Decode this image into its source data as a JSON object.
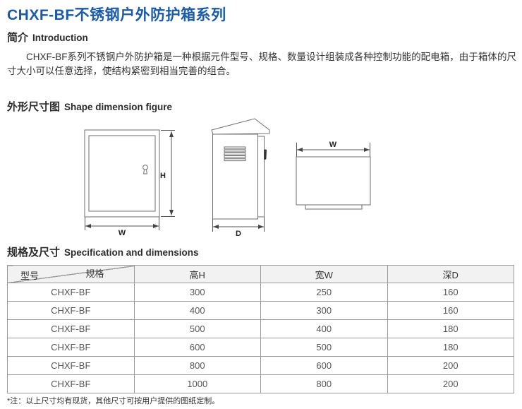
{
  "page": {
    "title": "CHXF-BF不锈钢户外防护箱系列",
    "title_color": "#1a5aa6"
  },
  "intro": {
    "heading_zh": "简介",
    "heading_en": "Introduction",
    "paragraph": "CHXF-BF系列不锈钢户外防护箱是一种根据元件型号、规格、数量设计组装成各种控制功能的配电箱，由于箱体的尺寸大小可以任意选择，使结构紧密到相当完善的组合。"
  },
  "shape_figure": {
    "heading_zh": "外形尺寸图",
    "heading_en": "Shape dimension figure",
    "front_view": {
      "height_label": "H",
      "width_label": "W"
    },
    "side_view": {
      "depth_label": "D"
    },
    "back_view": {
      "width_label": "W"
    }
  },
  "spec_table": {
    "heading_zh": "规格及尺寸",
    "heading_en": "Specification and dimensions",
    "corner": {
      "top": "规格",
      "bottom": "型号"
    },
    "columns": [
      "高H",
      "宽W",
      "深D"
    ],
    "rows": [
      {
        "model": "CHXF-BF",
        "h": "300",
        "w": "250",
        "d": "160"
      },
      {
        "model": "CHXF-BF",
        "h": "400",
        "w": "300",
        "d": "160"
      },
      {
        "model": "CHXF-BF",
        "h": "500",
        "w": "400",
        "d": "180"
      },
      {
        "model": "CHXF-BF",
        "h": "600",
        "w": "500",
        "d": "180"
      },
      {
        "model": "CHXF-BF",
        "h": "800",
        "w": "600",
        "d": "200"
      },
      {
        "model": "CHXF-BF",
        "h": "1000",
        "w": "800",
        "d": "200"
      }
    ],
    "footnote": "*注：以上尺寸均有现货，其他尺寸可按用户提供的图纸定制。"
  }
}
